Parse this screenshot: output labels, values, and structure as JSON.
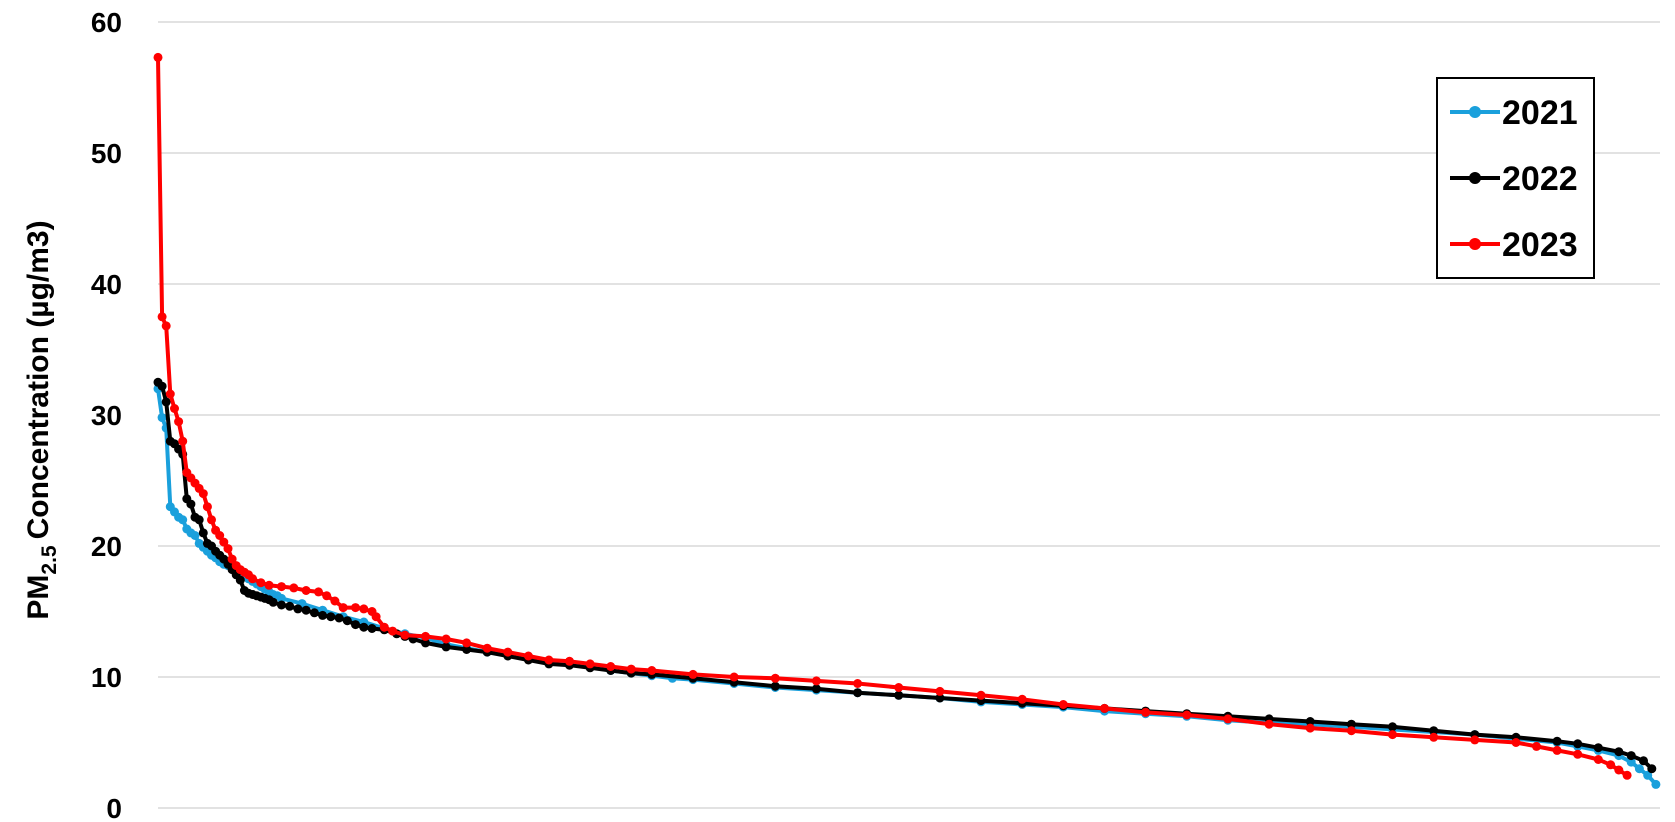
{
  "chart_data": {
    "type": "line",
    "title": "",
    "xlabel": "",
    "ylabel": "Concentration (µg/m3)",
    "ylabel_prefix": "PM",
    "ylabel_subscript": "2.5",
    "ylim": [
      0,
      60
    ],
    "yticks": [
      "0",
      "10",
      "20",
      "30",
      "40",
      "50",
      "60"
    ],
    "xlim": [
      0,
      365
    ],
    "grid": true,
    "legend_position": "top-right",
    "series": [
      {
        "name": "2021",
        "color": "#1aa0dc",
        "points": [
          [
            0,
            32.0
          ],
          [
            1,
            29.8
          ],
          [
            2,
            29.0
          ],
          [
            3,
            23.0
          ],
          [
            4,
            22.6
          ],
          [
            5,
            22.2
          ],
          [
            6,
            22.0
          ],
          [
            7,
            21.3
          ],
          [
            8,
            21.0
          ],
          [
            9,
            20.8
          ],
          [
            10,
            20.2
          ],
          [
            11,
            19.9
          ],
          [
            12,
            19.6
          ],
          [
            13,
            19.3
          ],
          [
            14,
            19.1
          ],
          [
            15,
            18.8
          ],
          [
            16,
            18.6
          ],
          [
            17,
            18.5
          ],
          [
            18,
            18.3
          ],
          [
            19,
            18.1
          ],
          [
            20,
            17.9
          ],
          [
            21,
            17.7
          ],
          [
            22,
            17.5
          ],
          [
            23,
            17.3
          ],
          [
            24,
            17.1
          ],
          [
            25,
            16.9
          ],
          [
            26,
            16.7
          ],
          [
            27,
            16.5
          ],
          [
            28,
            16.3
          ],
          [
            29,
            16.2
          ],
          [
            30,
            16.0
          ],
          [
            35,
            15.6
          ],
          [
            40,
            15.1
          ],
          [
            45,
            14.6
          ],
          [
            50,
            14.2
          ],
          [
            55,
            13.7
          ],
          [
            60,
            13.3
          ],
          [
            65,
            13.0
          ],
          [
            70,
            12.5
          ],
          [
            75,
            12.2
          ],
          [
            80,
            11.9
          ],
          [
            85,
            11.7
          ],
          [
            90,
            11.4
          ],
          [
            95,
            11.2
          ],
          [
            100,
            11.0
          ],
          [
            105,
            10.8
          ],
          [
            110,
            10.5
          ],
          [
            115,
            10.3
          ],
          [
            120,
            10.1
          ],
          [
            125,
            9.9
          ],
          [
            130,
            9.8
          ],
          [
            140,
            9.5
          ],
          [
            150,
            9.2
          ],
          [
            160,
            9.0
          ],
          [
            170,
            8.8
          ],
          [
            180,
            8.6
          ],
          [
            190,
            8.4
          ],
          [
            200,
            8.1
          ],
          [
            210,
            7.9
          ],
          [
            220,
            7.7
          ],
          [
            230,
            7.4
          ],
          [
            240,
            7.2
          ],
          [
            250,
            7.0
          ],
          [
            260,
            6.7
          ],
          [
            270,
            6.5
          ],
          [
            280,
            6.4
          ],
          [
            290,
            6.2
          ],
          [
            300,
            6.0
          ],
          [
            310,
            5.8
          ],
          [
            320,
            5.6
          ],
          [
            330,
            5.3
          ],
          [
            340,
            5.0
          ],
          [
            345,
            4.7
          ],
          [
            350,
            4.4
          ],
          [
            355,
            4.0
          ],
          [
            358,
            3.5
          ],
          [
            360,
            3.0
          ],
          [
            362,
            2.5
          ],
          [
            364,
            1.8
          ]
        ]
      },
      {
        "name": "2022",
        "color": "#000000",
        "points": [
          [
            0,
            32.5
          ],
          [
            1,
            32.2
          ],
          [
            2,
            31.0
          ],
          [
            3,
            28.0
          ],
          [
            4,
            27.8
          ],
          [
            5,
            27.4
          ],
          [
            6,
            27.0
          ],
          [
            7,
            23.6
          ],
          [
            8,
            23.2
          ],
          [
            9,
            22.2
          ],
          [
            10,
            22.0
          ],
          [
            11,
            21.0
          ],
          [
            12,
            20.2
          ],
          [
            13,
            20.0
          ],
          [
            14,
            19.6
          ],
          [
            15,
            19.3
          ],
          [
            16,
            19.0
          ],
          [
            17,
            18.6
          ],
          [
            18,
            18.2
          ],
          [
            19,
            17.8
          ],
          [
            20,
            17.4
          ],
          [
            21,
            16.6
          ],
          [
            22,
            16.4
          ],
          [
            23,
            16.3
          ],
          [
            24,
            16.2
          ],
          [
            25,
            16.1
          ],
          [
            26,
            16.0
          ],
          [
            27,
            15.9
          ],
          [
            28,
            15.7
          ],
          [
            30,
            15.5
          ],
          [
            32,
            15.4
          ],
          [
            34,
            15.2
          ],
          [
            36,
            15.1
          ],
          [
            38,
            14.9
          ],
          [
            40,
            14.7
          ],
          [
            42,
            14.6
          ],
          [
            44,
            14.5
          ],
          [
            46,
            14.3
          ],
          [
            48,
            14.0
          ],
          [
            50,
            13.8
          ],
          [
            52,
            13.7
          ],
          [
            55,
            13.6
          ],
          [
            58,
            13.3
          ],
          [
            60,
            13.1
          ],
          [
            62,
            12.9
          ],
          [
            65,
            12.6
          ],
          [
            70,
            12.3
          ],
          [
            75,
            12.1
          ],
          [
            80,
            11.9
          ],
          [
            85,
            11.6
          ],
          [
            90,
            11.3
          ],
          [
            95,
            11.0
          ],
          [
            100,
            10.9
          ],
          [
            105,
            10.7
          ],
          [
            110,
            10.5
          ],
          [
            115,
            10.3
          ],
          [
            120,
            10.2
          ],
          [
            130,
            9.9
          ],
          [
            140,
            9.6
          ],
          [
            150,
            9.3
          ],
          [
            160,
            9.1
          ],
          [
            170,
            8.8
          ],
          [
            180,
            8.6
          ],
          [
            190,
            8.4
          ],
          [
            200,
            8.2
          ],
          [
            210,
            8.0
          ],
          [
            220,
            7.8
          ],
          [
            230,
            7.6
          ],
          [
            240,
            7.4
          ],
          [
            250,
            7.2
          ],
          [
            260,
            7.0
          ],
          [
            270,
            6.8
          ],
          [
            280,
            6.6
          ],
          [
            290,
            6.4
          ],
          [
            300,
            6.2
          ],
          [
            310,
            5.9
          ],
          [
            320,
            5.6
          ],
          [
            330,
            5.4
          ],
          [
            340,
            5.1
          ],
          [
            345,
            4.9
          ],
          [
            350,
            4.6
          ],
          [
            355,
            4.3
          ],
          [
            358,
            4.0
          ],
          [
            361,
            3.6
          ],
          [
            363,
            3.0
          ]
        ]
      },
      {
        "name": "2023",
        "color": "#ff0000",
        "points": [
          [
            0,
            57.3
          ],
          [
            1,
            37.5
          ],
          [
            2,
            36.8
          ],
          [
            3,
            31.6
          ],
          [
            4,
            30.5
          ],
          [
            5,
            29.5
          ],
          [
            6,
            28.0
          ],
          [
            7,
            25.6
          ],
          [
            8,
            25.2
          ],
          [
            9,
            24.8
          ],
          [
            10,
            24.4
          ],
          [
            11,
            24.0
          ],
          [
            12,
            23.0
          ],
          [
            13,
            22.0
          ],
          [
            14,
            21.2
          ],
          [
            15,
            20.8
          ],
          [
            16,
            20.3
          ],
          [
            17,
            19.8
          ],
          [
            18,
            19.0
          ],
          [
            19,
            18.5
          ],
          [
            20,
            18.2
          ],
          [
            21,
            18.0
          ],
          [
            22,
            17.8
          ],
          [
            23,
            17.5
          ],
          [
            25,
            17.2
          ],
          [
            27,
            17.0
          ],
          [
            30,
            16.9
          ],
          [
            33,
            16.8
          ],
          [
            36,
            16.6
          ],
          [
            39,
            16.5
          ],
          [
            41,
            16.2
          ],
          [
            43,
            15.8
          ],
          [
            45,
            15.3
          ],
          [
            48,
            15.3
          ],
          [
            50,
            15.2
          ],
          [
            52,
            15.0
          ],
          [
            53,
            14.6
          ],
          [
            55,
            13.8
          ],
          [
            57,
            13.5
          ],
          [
            60,
            13.2
          ],
          [
            65,
            13.1
          ],
          [
            70,
            12.9
          ],
          [
            75,
            12.6
          ],
          [
            80,
            12.2
          ],
          [
            85,
            11.9
          ],
          [
            90,
            11.6
          ],
          [
            95,
            11.3
          ],
          [
            100,
            11.2
          ],
          [
            105,
            11.0
          ],
          [
            110,
            10.8
          ],
          [
            115,
            10.6
          ],
          [
            120,
            10.5
          ],
          [
            130,
            10.2
          ],
          [
            140,
            10.0
          ],
          [
            150,
            9.9
          ],
          [
            160,
            9.7
          ],
          [
            170,
            9.5
          ],
          [
            180,
            9.2
          ],
          [
            190,
            8.9
          ],
          [
            200,
            8.6
          ],
          [
            210,
            8.3
          ],
          [
            220,
            7.9
          ],
          [
            230,
            7.6
          ],
          [
            240,
            7.3
          ],
          [
            250,
            7.1
          ],
          [
            260,
            6.8
          ],
          [
            270,
            6.4
          ],
          [
            280,
            6.1
          ],
          [
            290,
            5.9
          ],
          [
            300,
            5.6
          ],
          [
            310,
            5.4
          ],
          [
            320,
            5.2
          ],
          [
            330,
            5.0
          ],
          [
            335,
            4.7
          ],
          [
            340,
            4.4
          ],
          [
            345,
            4.1
          ],
          [
            350,
            3.7
          ],
          [
            353,
            3.3
          ],
          [
            355,
            2.9
          ],
          [
            357,
            2.5
          ]
        ]
      }
    ]
  }
}
